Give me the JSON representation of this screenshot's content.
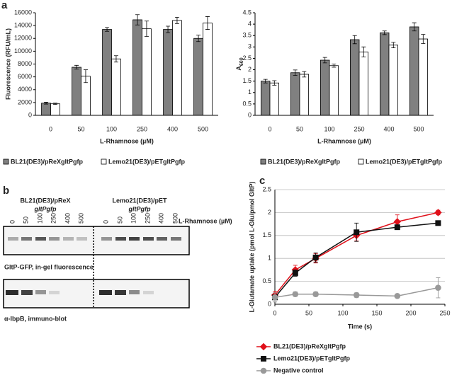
{
  "panel_labels": [
    "a",
    "b",
    "c"
  ],
  "chart_data": [
    {
      "type": "bar",
      "y_label": "Fluorescence (RFU/mL)",
      "x_label": "L-Rhamnose (µM)",
      "categories": [
        "0",
        "50",
        "100",
        "250",
        "400",
        "500"
      ],
      "series": [
        {
          "name": "BL21(DE3)/pReXgltPgfp",
          "color": "#808080",
          "values": [
            1900,
            7500,
            13400,
            14900,
            13400,
            12000
          ],
          "errors": [
            150,
            300,
            300,
            800,
            500,
            500
          ]
        },
        {
          "name": "Lemo21(DE3)/pETgltPgfp",
          "color": "#ffffff",
          "values": [
            1800,
            6100,
            8800,
            13500,
            14800,
            14400
          ],
          "errors": [
            100,
            1000,
            500,
            1200,
            500,
            1000
          ]
        }
      ],
      "ylim": [
        0,
        16000
      ],
      "yticks": [
        0,
        2000,
        4000,
        6000,
        8000,
        10000,
        12000,
        14000,
        16000
      ]
    },
    {
      "type": "bar",
      "y_label": {
        "text": "A",
        "subscript": "600"
      },
      "x_label": "L-Rhamnose (µM)",
      "categories": [
        "0",
        "50",
        "100",
        "250",
        "400",
        "500"
      ],
      "series": [
        {
          "name": "BL21(DE3)/pReXgltPgfp",
          "color": "#808080",
          "values": [
            1.5,
            1.87,
            2.42,
            3.32,
            3.62,
            3.88
          ],
          "errors": [
            0.08,
            0.12,
            0.12,
            0.18,
            0.08,
            0.18
          ]
        },
        {
          "name": "Lemo21(DE3)/pETgltPgfp",
          "color": "#ffffff",
          "values": [
            1.42,
            1.8,
            2.18,
            2.78,
            3.08,
            3.35
          ],
          "errors": [
            0.1,
            0.12,
            0.07,
            0.22,
            0.12,
            0.2
          ]
        }
      ],
      "ylim": [
        0,
        4.5
      ],
      "yticks": [
        0,
        0.5,
        1,
        1.5,
        2,
        2.5,
        3,
        3.5,
        4,
        4.5
      ]
    },
    {
      "type": "line",
      "y_label": "L-Glutamate uptake (pmol L-Glu/pmol GltP)",
      "x_label": "Time (s)",
      "x": [
        0,
        30,
        60,
        120,
        180,
        240
      ],
      "series": [
        {
          "name": "BL21(DE3)/pReXgltPgfp",
          "color": "#e0101a",
          "marker": "diamond",
          "values": [
            0.2,
            0.75,
            1.0,
            1.5,
            1.8,
            2.0
          ],
          "errors": [
            0.08,
            0.1,
            0.1,
            0.12,
            0.15,
            0.05
          ]
        },
        {
          "name": "Lemo21(DE3)/pETgltPgfp",
          "color": "#111111",
          "marker": "square",
          "values": [
            0.15,
            0.68,
            1.02,
            1.57,
            1.68,
            1.77
          ],
          "errors": [
            0.05,
            0.07,
            0.1,
            0.2,
            0.05,
            0.04
          ]
        },
        {
          "name": "Negative control",
          "color": "#999999",
          "marker": "circle",
          "values": [
            0.15,
            0.22,
            0.22,
            0.2,
            0.18,
            0.36
          ],
          "errors": [
            0.1,
            0.05,
            0.05,
            0.05,
            0.04,
            0.22
          ]
        }
      ],
      "xlim": [
        0,
        250
      ],
      "xticks": [
        0,
        50,
        100,
        150,
        200,
        250
      ],
      "ylim": [
        0,
        2.5
      ],
      "yticks": [
        0,
        0.5,
        1,
        1.5,
        2,
        2.5
      ],
      "grid": true
    }
  ],
  "gel": {
    "groups": [
      {
        "strain": "BL21(DE3)/pReX",
        "construct": "gltPgfp",
        "lanes": [
          "0",
          "50",
          "100",
          "250",
          "400",
          "500"
        ]
      },
      {
        "strain": "Lemo21(DE3)/pET",
        "construct": "gltPgfp",
        "lanes": [
          "0",
          "50",
          "100",
          "250",
          "400",
          "500"
        ]
      }
    ],
    "axis_label": "L-Rhamnose (µM)",
    "blots": [
      "GltP-GFP, in-gel fluorescence",
      "α-IbpB, immuno-blot"
    ]
  }
}
